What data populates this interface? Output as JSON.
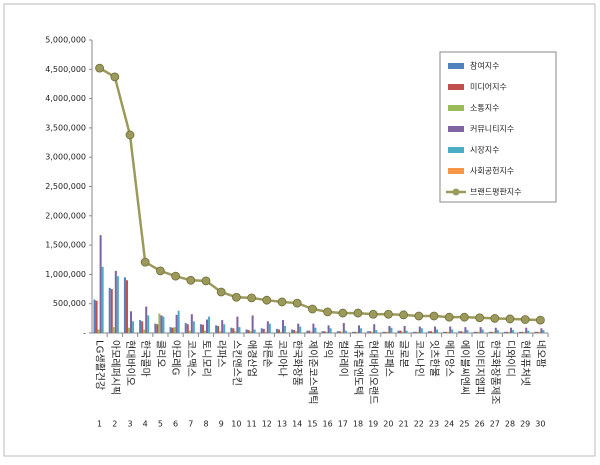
{
  "chart_data": {
    "type": "bar-line",
    "categories": [
      "LG생활건강",
      "아모레퍼시픽",
      "현대바이오",
      "한국콜마",
      "클리오",
      "아모레G",
      "코스맥스",
      "토니모리",
      "라파스",
      "스킨앤스킨",
      "애경산업",
      "바른손",
      "코리아나",
      "한국화장품",
      "제이준코스메틱",
      "원익",
      "컬러레이",
      "내츄럴엔도텍",
      "현대바이오랜드",
      "올리패스",
      "글로본",
      "코스나인",
      "잇츠한불",
      "메디앙스",
      "에이블씨엔씨",
      "브이티지엠피",
      "한국화장품제조",
      "디와이디",
      "현대퓨처넷",
      "네오팜"
    ],
    "ranks": [
      1,
      2,
      3,
      4,
      5,
      6,
      7,
      8,
      9,
      10,
      11,
      12,
      13,
      14,
      15,
      16,
      17,
      18,
      19,
      20,
      21,
      22,
      23,
      24,
      25,
      26,
      27,
      28,
      29,
      30
    ],
    "series": [
      {
        "name": "참여지수",
        "color": "#4f81bd",
        "kind": "bar",
        "values": [
          570000,
          770000,
          950000,
          220000,
          160000,
          100000,
          170000,
          150000,
          130000,
          90000,
          60000,
          80000,
          70000,
          60000,
          40000,
          30000,
          30000,
          20000,
          30000,
          20000,
          40000,
          20000,
          30000,
          20000,
          30000,
          20000,
          20000,
          20000,
          20000,
          20000
        ]
      },
      {
        "name": "미디어지수",
        "color": "#c0504d",
        "kind": "bar",
        "values": [
          550000,
          750000,
          900000,
          200000,
          150000,
          90000,
          150000,
          140000,
          120000,
          80000,
          50000,
          70000,
          60000,
          50000,
          40000,
          30000,
          30000,
          20000,
          30000,
          20000,
          40000,
          20000,
          30000,
          20000,
          30000,
          20000,
          20000,
          20000,
          20000,
          20000
        ]
      },
      {
        "name": "소통지수",
        "color": "#9bbb59",
        "kind": "bar",
        "values": [
          60000,
          100000,
          90000,
          60000,
          330000,
          100000,
          40000,
          40000,
          30000,
          30000,
          30000,
          20000,
          20000,
          30000,
          20000,
          20000,
          20000,
          20000,
          20000,
          20000,
          20000,
          20000,
          20000,
          20000,
          20000,
          20000,
          20000,
          20000,
          20000,
          20000
        ]
      },
      {
        "name": "커뮤니티지수",
        "color": "#8064a2",
        "kind": "bar",
        "values": [
          1670000,
          1060000,
          370000,
          450000,
          300000,
          310000,
          320000,
          230000,
          220000,
          280000,
          300000,
          200000,
          220000,
          160000,
          160000,
          130000,
          170000,
          130000,
          150000,
          120000,
          120000,
          110000,
          110000,
          110000,
          100000,
          100000,
          90000,
          90000,
          90000,
          80000
        ]
      },
      {
        "name": "시장지수",
        "color": "#4bacc6",
        "kind": "bar",
        "values": [
          1130000,
          970000,
          200000,
          300000,
          280000,
          380000,
          200000,
          280000,
          150000,
          100000,
          60000,
          160000,
          120000,
          110000,
          90000,
          80000,
          40000,
          80000,
          50000,
          90000,
          40000,
          80000,
          60000,
          60000,
          50000,
          60000,
          50000,
          50000,
          40000,
          50000
        ]
      },
      {
        "name": "사회공헌지수",
        "color": "#f79646",
        "kind": "bar",
        "values": [
          0,
          0,
          0,
          0,
          0,
          0,
          0,
          0,
          0,
          0,
          0,
          0,
          0,
          0,
          0,
          0,
          0,
          0,
          0,
          0,
          0,
          0,
          0,
          0,
          0,
          0,
          0,
          0,
          0,
          0
        ]
      },
      {
        "name": "브랜드평판지수",
        "color": "#9c9a5b",
        "kind": "line",
        "values": [
          4520000,
          4370000,
          3380000,
          1210000,
          1060000,
          970000,
          900000,
          890000,
          700000,
          610000,
          600000,
          560000,
          530000,
          510000,
          410000,
          360000,
          340000,
          340000,
          320000,
          320000,
          310000,
          290000,
          290000,
          270000,
          270000,
          260000,
          250000,
          240000,
          230000,
          220000
        ]
      }
    ],
    "ylim": [
      0,
      5000000
    ],
    "yticks": [
      {
        "value": 0,
        "label": "-"
      },
      {
        "value": 500000,
        "label": "500,000"
      },
      {
        "value": 1000000,
        "label": "1,000,000"
      },
      {
        "value": 1500000,
        "label": "1,500,000"
      },
      {
        "value": 2000000,
        "label": "2,000,000"
      },
      {
        "value": 2500000,
        "label": "2,500,000"
      },
      {
        "value": 3000000,
        "label": "3,000,000"
      },
      {
        "value": 3500000,
        "label": "3,500,000"
      },
      {
        "value": 4000000,
        "label": "4,000,000"
      },
      {
        "value": 4500000,
        "label": "4,500,000"
      },
      {
        "value": 5000000,
        "label": "5,000,000"
      }
    ],
    "grid": false,
    "legend": "upper-right"
  }
}
